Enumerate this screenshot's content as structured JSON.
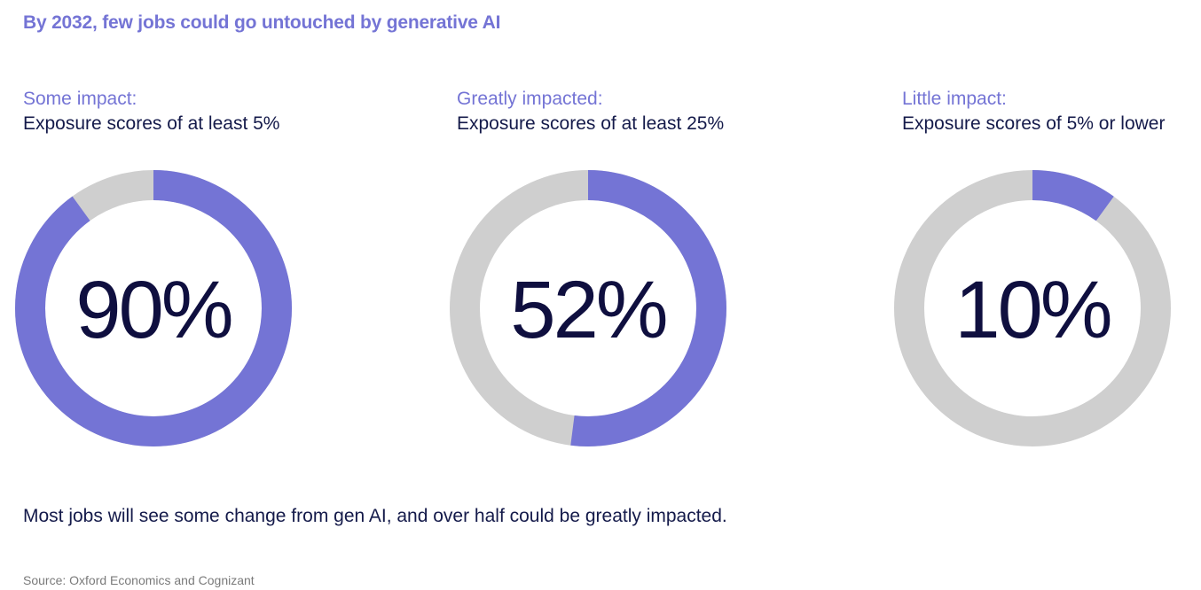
{
  "title": "By 2032, few jobs could go untouched by generative AI",
  "colors": {
    "accent": "#7474d5",
    "track": "#cfcfcf",
    "dark": "#0f0f3f",
    "text": "#141a4a"
  },
  "chart_data": {
    "type": "pie",
    "title": "By 2032, few jobs could go untouched by generative AI",
    "charts": [
      {
        "category": "Some impact:",
        "description": "Exposure scores of at least 5%",
        "value": 90,
        "label": "90%"
      },
      {
        "category": "Greatly impacted:",
        "description": "Exposure scores of at least 25%",
        "value": 52,
        "label": "52%"
      },
      {
        "category": "Little impact:",
        "description": "Exposure scores of 5% or lower",
        "value": 10,
        "label": "10%"
      }
    ]
  },
  "note": "Most jobs will see some change from gen AI, and over half could be greatly impacted.",
  "source": "Source: Oxford Economics and Cognizant"
}
